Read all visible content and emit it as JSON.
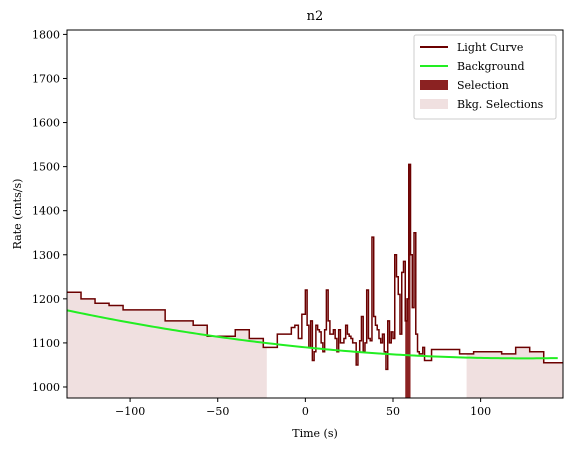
{
  "chart_data": {
    "type": "line",
    "title": "n2",
    "xlabel": "Time (s)",
    "ylabel": "Rate (cnts/s)",
    "xlim": [
      -136,
      147
    ],
    "ylim": [
      975,
      1810
    ],
    "xticks": [
      -100,
      -50,
      0,
      50,
      100
    ],
    "yticks": [
      1000,
      1100,
      1200,
      1300,
      1400,
      1500,
      1600,
      1700,
      1800
    ],
    "grid": false,
    "legend_position": "top-right",
    "colors": {
      "light_curve": "#6b0000",
      "background": "#22ee22",
      "selection": "#8b2222",
      "bkg_selection": "#f0e0e0"
    },
    "legend": [
      {
        "label": "Light Curve",
        "kind": "line",
        "color": "#6b0000"
      },
      {
        "label": "Background",
        "kind": "line",
        "color": "#22ee22"
      },
      {
        "label": "Selection",
        "kind": "patch",
        "color": "#8b2222"
      },
      {
        "label": "Bkg. Selections",
        "kind": "patch",
        "color": "#f0e0e0"
      }
    ],
    "bkg_selections": [
      [
        -136,
        -22
      ],
      [
        92,
        147
      ]
    ],
    "selection": [
      [
        57,
        60
      ]
    ],
    "background_coeffs": [
      1090,
      -0.4,
      0.0016
    ],
    "light_curve_steps": [
      [
        -136,
        1215
      ],
      [
        -128,
        1200
      ],
      [
        -120,
        1190
      ],
      [
        -112,
        1185
      ],
      [
        -104,
        1175
      ],
      [
        -96,
        1175
      ],
      [
        -88,
        1175
      ],
      [
        -80,
        1150
      ],
      [
        -72,
        1150
      ],
      [
        -64,
        1140
      ],
      [
        -56,
        1115
      ],
      [
        -48,
        1115
      ],
      [
        -40,
        1130
      ],
      [
        -32,
        1110
      ],
      [
        -24,
        1090
      ],
      [
        -16,
        1120
      ],
      [
        -8,
        1130
      ],
      [
        -8,
        1135
      ],
      [
        -6,
        1140
      ],
      [
        -4,
        1110
      ],
      [
        -2,
        1165
      ],
      [
        0,
        1220
      ],
      [
        1,
        1140
      ],
      [
        2,
        1090
      ],
      [
        3,
        1150
      ],
      [
        4,
        1060
      ],
      [
        5,
        1080
      ],
      [
        6,
        1140
      ],
      [
        7,
        1130
      ],
      [
        8,
        1125
      ],
      [
        9,
        1100
      ],
      [
        10,
        1080
      ],
      [
        11,
        1130
      ],
      [
        12,
        1220
      ],
      [
        13,
        1150
      ],
      [
        14,
        1120
      ],
      [
        15,
        1120
      ],
      [
        16,
        1130
      ],
      [
        17,
        1110
      ],
      [
        18,
        1080
      ],
      [
        19,
        1130
      ],
      [
        20,
        1100
      ],
      [
        21,
        1100
      ],
      [
        22,
        1110
      ],
      [
        23,
        1140
      ],
      [
        24,
        1120
      ],
      [
        25,
        1115
      ],
      [
        26,
        1110
      ],
      [
        27,
        1100
      ],
      [
        28,
        1100
      ],
      [
        29,
        1050
      ],
      [
        30,
        1080
      ],
      [
        31,
        1105
      ],
      [
        32,
        1160
      ],
      [
        33,
        1080
      ],
      [
        34,
        1100
      ],
      [
        35,
        1220
      ],
      [
        36,
        1110
      ],
      [
        37,
        1105
      ],
      [
        38,
        1340
      ],
      [
        39,
        1160
      ],
      [
        40,
        1140
      ],
      [
        41,
        1130
      ],
      [
        42,
        1110
      ],
      [
        43,
        1100
      ],
      [
        44,
        1120
      ],
      [
        45,
        1080
      ],
      [
        46,
        1040
      ],
      [
        47,
        1150
      ],
      [
        48,
        1100
      ],
      [
        49,
        1125
      ],
      [
        50,
        1110
      ],
      [
        51,
        1300
      ],
      [
        52,
        1250
      ],
      [
        53,
        1210
      ],
      [
        54,
        1120
      ],
      [
        55,
        1260
      ],
      [
        56,
        1285
      ],
      [
        57,
        1150
      ],
      [
        58,
        1200
      ],
      [
        59,
        1505
      ],
      [
        60,
        1300
      ],
      [
        61,
        1180
      ],
      [
        62,
        1350
      ],
      [
        63,
        1120
      ],
      [
        64,
        1080
      ],
      [
        65,
        1075
      ],
      [
        66,
        1075
      ],
      [
        67,
        1090
      ],
      [
        68,
        1060
      ],
      [
        70,
        1060
      ],
      [
        72,
        1085
      ],
      [
        80,
        1085
      ],
      [
        88,
        1075
      ],
      [
        96,
        1080
      ],
      [
        104,
        1080
      ],
      [
        112,
        1075
      ],
      [
        120,
        1090
      ],
      [
        128,
        1080
      ],
      [
        136,
        1055
      ],
      [
        147,
        1055
      ]
    ]
  }
}
